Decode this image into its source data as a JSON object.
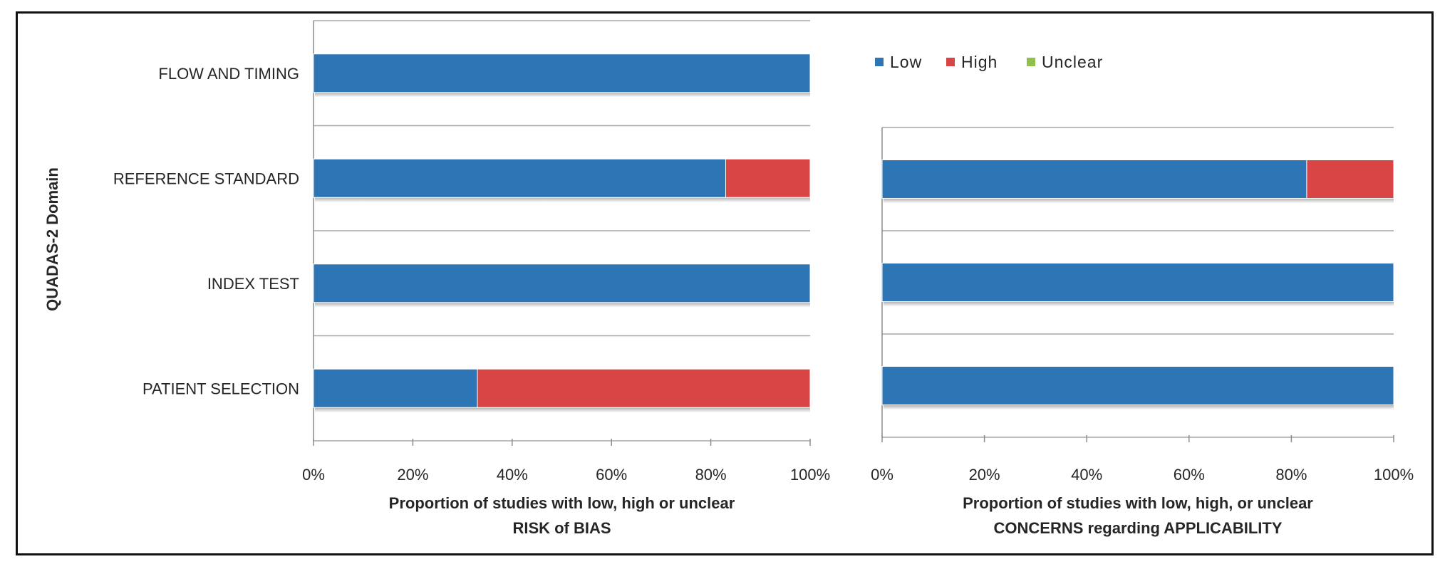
{
  "chart_data": {
    "type": "bar",
    "orientation": "horizontal",
    "stacked": "percent",
    "y_axis_title": "QUADAS-2 Domain",
    "legend": {
      "position": "top-right",
      "entries": [
        "Low",
        "High",
        "Unclear"
      ]
    },
    "colors": {
      "Low": "#2e75b6",
      "High": "#d94545",
      "Unclear": "#8fbf4f"
    },
    "x_ticks": [
      "0%",
      "20%",
      "40%",
      "60%",
      "80%",
      "100%"
    ],
    "xlim": [
      0,
      100
    ],
    "panels": [
      {
        "name": "risk-of-bias",
        "xlabel_line1": "Proportion of studies with low, high or unclear",
        "xlabel_line2": "RISK of BIAS",
        "categories": [
          "FLOW AND TIMING",
          "REFERENCE STANDARD",
          "INDEX TEST",
          "PATIENT SELECTION"
        ],
        "series": [
          {
            "name": "Low",
            "values": [
              100,
              83,
              100,
              33
            ]
          },
          {
            "name": "High",
            "values": [
              0,
              17,
              0,
              67
            ]
          },
          {
            "name": "Unclear",
            "values": [
              0,
              0,
              0,
              0
            ]
          }
        ]
      },
      {
        "name": "applicability",
        "xlabel_line1": "Proportion of studies with low, high, or unclear",
        "xlabel_line2": "CONCERNS regarding APPLICABILITY",
        "categories": [
          "REFERENCE STANDARD",
          "INDEX TEST",
          "PATIENT SELECTION"
        ],
        "series": [
          {
            "name": "Low",
            "values": [
              83,
              100,
              100
            ]
          },
          {
            "name": "High",
            "values": [
              17,
              0,
              0
            ]
          },
          {
            "name": "Unclear",
            "values": [
              0,
              0,
              0
            ]
          }
        ]
      }
    ]
  }
}
